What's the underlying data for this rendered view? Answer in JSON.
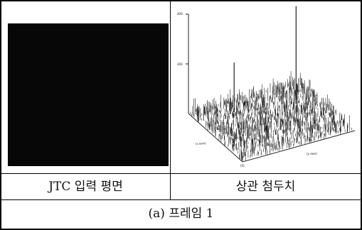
{
  "figure": {
    "left_caption": "JTC 입력 평면",
    "right_caption": "상관 첨두치",
    "subcaption": "(a) 프레임 1"
  },
  "plot3d": {
    "z_ticks": [
      "400",
      "200"
    ],
    "x_axis_label": "(x axis)",
    "y_axis_label": "(y axis)",
    "origin_label": "(0)"
  },
  "colors": {
    "frame_line": "#000000",
    "input_plane": "#070707",
    "spikes": "#222222"
  }
}
